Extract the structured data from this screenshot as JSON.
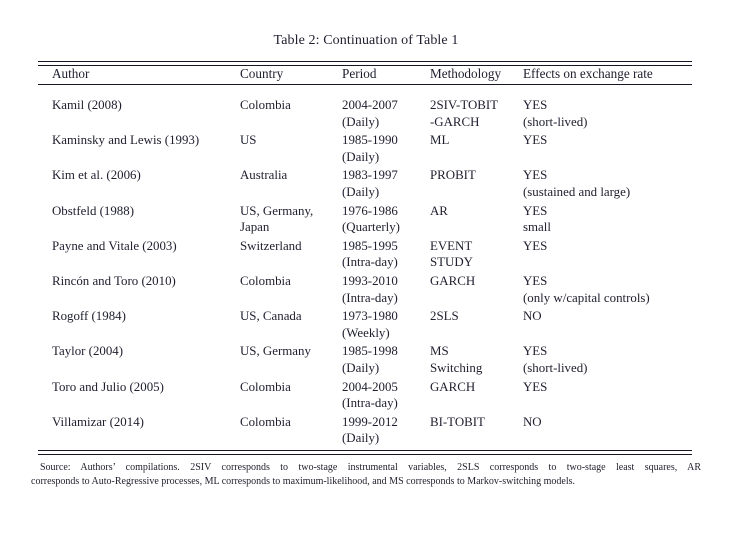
{
  "page": {
    "caption": "Table 2: Continuation of Table 1"
  },
  "table": {
    "columns": [
      "Author",
      "Country",
      "Period",
      "Methodology",
      "Effects on exchange rate"
    ],
    "rows": [
      {
        "author": [
          "Kamil (2008)"
        ],
        "country": [
          "Colombia"
        ],
        "period": [
          "2004-2007",
          "(Daily)"
        ],
        "methodology": [
          "2SIV-TOBIT",
          "-GARCH"
        ],
        "effects": [
          "YES",
          "(short-lived)"
        ]
      },
      {
        "author": [
          "Kaminsky and Lewis (1993)"
        ],
        "country": [
          "US"
        ],
        "period": [
          "1985-1990",
          "(Daily)"
        ],
        "methodology": [
          "ML"
        ],
        "effects": [
          "YES"
        ]
      },
      {
        "author": [
          "Kim et al. (2006)"
        ],
        "country": [
          "Australia"
        ],
        "period": [
          "1983-1997",
          "(Daily)"
        ],
        "methodology": [
          "PROBIT"
        ],
        "effects": [
          "YES",
          "(sustained and large)"
        ]
      },
      {
        "author": [
          "Obstfeld (1988)"
        ],
        "country": [
          "US, Germany,",
          "Japan"
        ],
        "period": [
          "1976-1986",
          "(Quarterly)"
        ],
        "methodology": [
          "AR"
        ],
        "effects": [
          "YES",
          "small"
        ]
      },
      {
        "author": [
          "Payne and Vitale (2003)"
        ],
        "country": [
          "Switzerland"
        ],
        "period": [
          "1985-1995",
          "(Intra-day)"
        ],
        "methodology": [
          "EVENT",
          "STUDY"
        ],
        "effects": [
          "YES"
        ]
      },
      {
        "author": [
          "Rincón and Toro (2010)"
        ],
        "country": [
          "Colombia"
        ],
        "period": [
          "1993-2010",
          "(Intra-day)"
        ],
        "methodology": [
          "GARCH"
        ],
        "effects": [
          "YES",
          "(only w/capital controls)"
        ]
      },
      {
        "author": [
          "Rogoff (1984)"
        ],
        "country": [
          "US, Canada"
        ],
        "period": [
          "1973-1980",
          "(Weekly)"
        ],
        "methodology": [
          "2SLS"
        ],
        "effects": [
          "NO"
        ]
      },
      {
        "author": [
          "Taylor (2004)"
        ],
        "country": [
          "US, Germany"
        ],
        "period": [
          "1985-1998",
          "(Daily)"
        ],
        "methodology": [
          "MS",
          "Switching"
        ],
        "effects": [
          "YES",
          "(short-lived)"
        ]
      },
      {
        "author": [
          "Toro and Julio (2005)"
        ],
        "country": [
          "Colombia"
        ],
        "period": [
          "2004-2005",
          "(Intra-day)"
        ],
        "methodology": [
          "GARCH"
        ],
        "effects": [
          "YES"
        ]
      },
      {
        "author": [
          "Villamizar (2014)"
        ],
        "country": [
          "Colombia"
        ],
        "period": [
          "1999-2012",
          "(Daily)"
        ],
        "methodology": [
          "BI-TOBIT"
        ],
        "effects": [
          "NO"
        ]
      }
    ]
  },
  "footnote": {
    "line1": "Source: Authors’ compilations. 2SIV corresponds to two-stage instrumental variables, 2SLS corresponds to two-stage least squares, AR",
    "line2": "corresponds to Auto-Regressive processes, ML corresponds to maximum-likelihood, and MS corresponds to Markov-switching models.",
    "text_color": "#22222f"
  },
  "style": {
    "ink_color": "#1e1e2e",
    "rule_color": "#161624",
    "background": "#ffffff"
  }
}
